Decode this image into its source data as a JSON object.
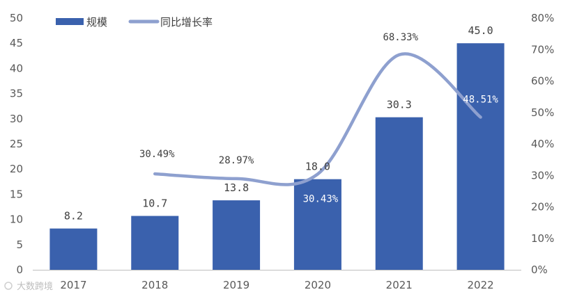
{
  "chart_data": {
    "type": "bar",
    "categories": [
      "2017",
      "2018",
      "2019",
      "2020",
      "2021",
      "2022"
    ],
    "series": [
      {
        "name": "规模",
        "type": "bar",
        "axis": "left",
        "values": [
          8.2,
          10.7,
          13.8,
          18.0,
          30.3,
          45.0
        ],
        "labels": [
          "8.2",
          "10.7",
          "13.8",
          "18.0",
          "30.3",
          "45.0"
        ]
      },
      {
        "name": "同比增长率",
        "type": "line",
        "axis": "right",
        "values": [
          null,
          30.49,
          28.97,
          30.43,
          68.33,
          48.51
        ],
        "labels": [
          "",
          "30.49%",
          "28.97%",
          "30.43%",
          "68.33%",
          "48.51%"
        ]
      }
    ],
    "y_left": {
      "min": 0,
      "max": 50,
      "ticks": [
        "0",
        "5",
        "10",
        "15",
        "20",
        "25",
        "30",
        "35",
        "40",
        "45",
        "50"
      ]
    },
    "y_right": {
      "min": 0,
      "max": 80,
      "ticks": [
        "0%",
        "10%",
        "20%",
        "30%",
        "40%",
        "50%",
        "60%",
        "70%",
        "80%"
      ]
    },
    "legend": {
      "position": "top-left"
    },
    "colors": {
      "bar": "#3a61ad",
      "line": "#8ea0cf",
      "axis": "#bfbfbf"
    }
  },
  "watermark": {
    "text": "大数跨境"
  }
}
